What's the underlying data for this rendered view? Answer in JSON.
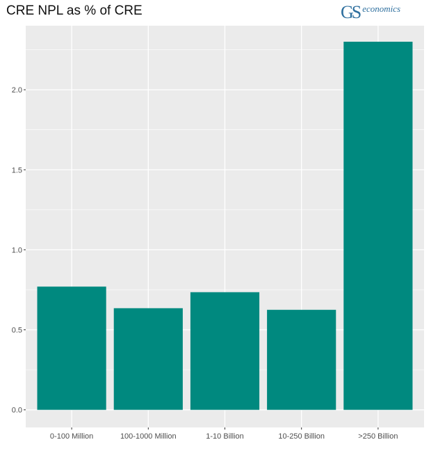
{
  "header": {
    "title": "CRE NPL as % of CRE",
    "logo_mark": "GS",
    "logo_text": "economics"
  },
  "colors": {
    "bar": "#00897f",
    "panel": "#ebebeb",
    "grid": "#ffffff",
    "logo": "#2e6f9e"
  },
  "chart_data": {
    "type": "bar",
    "title": "CRE NPL as % of CRE",
    "xlabel": "",
    "ylabel": "",
    "categories": [
      "0-100 Million",
      "100-1000 Million",
      "1-10 Billion",
      "10-250 Billion",
      ">250 Billion"
    ],
    "values": [
      0.77,
      0.635,
      0.735,
      0.625,
      2.3
    ],
    "ylim": [
      -0.11,
      2.4
    ],
    "yticks": [
      0.0,
      0.5,
      1.0,
      1.5,
      2.0
    ],
    "ytick_labels": [
      "0.0",
      "0.5",
      "1.0",
      "1.5",
      "2.0"
    ],
    "grid": true,
    "legend": "none"
  }
}
